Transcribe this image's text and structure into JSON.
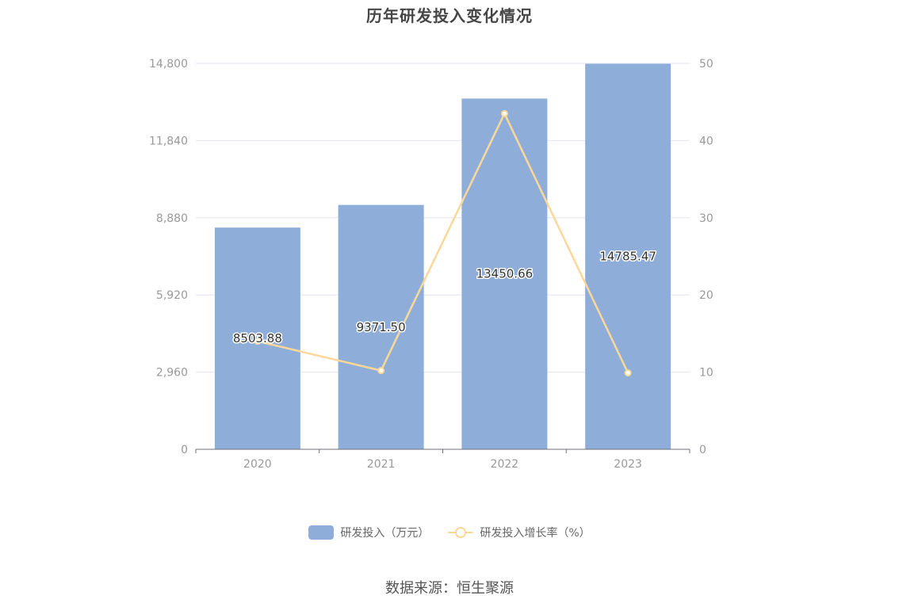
{
  "chart_data": {
    "type": "bar",
    "title": "历年研发投入变化情况",
    "categories": [
      "2020",
      "2021",
      "2022",
      "2023"
    ],
    "series": [
      {
        "name": "研发投入（万元）",
        "type": "bar",
        "axis": "left",
        "color": "#8eaed9",
        "values": [
          8503.88,
          9371.5,
          13450.66,
          14785.47
        ],
        "labels": [
          "8503.88",
          "9371.50",
          "13450.66",
          "14785.47"
        ]
      },
      {
        "name": "研发投入增长率（%）",
        "type": "line",
        "axis": "right",
        "color": "#fbd899",
        "values": [
          14.0,
          10.2,
          43.5,
          9.9
        ]
      }
    ],
    "y_left": {
      "min": 0,
      "max": 14800,
      "ticks": [
        0,
        2960,
        5920,
        8880,
        11840,
        14800
      ],
      "tick_labels": [
        "0",
        "2,960",
        "5,920",
        "8,880",
        "11,840",
        "14,800"
      ]
    },
    "y_right": {
      "min": 0,
      "max": 50,
      "ticks": [
        0,
        10,
        20,
        30,
        40,
        50
      ],
      "tick_labels": [
        "0",
        "10",
        "20",
        "30",
        "40",
        "50"
      ]
    },
    "grid": true,
    "legend_position": "bottom-center"
  },
  "source_text": "数据来源：恒生聚源",
  "colors": {
    "grid": "#e3e6f0",
    "axis": "#6e7079",
    "tick_text": "#999999",
    "label_text": "#333333"
  }
}
